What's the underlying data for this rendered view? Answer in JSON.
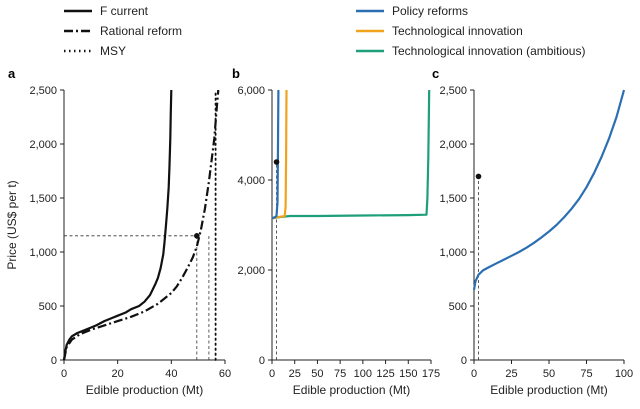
{
  "legend": [
    {
      "label": "F current",
      "style": "solid",
      "color": "#111111"
    },
    {
      "label": "Rational reform",
      "style": "dashdot",
      "color": "#111111"
    },
    {
      "label": "MSY",
      "style": "dotted",
      "color": "#111111"
    },
    {
      "label": "Policy reforms",
      "style": "solid",
      "color": "#2b6fb3"
    },
    {
      "label": "Technological innovation",
      "style": "solid",
      "color": "#f0a41e"
    },
    {
      "label": "Technological innovation (ambitious)",
      "style": "solid",
      "color": "#1f9e7a"
    }
  ],
  "chart_data": [
    {
      "panel": "a",
      "type": "line",
      "xlabel": "Edible production (Mt)",
      "ylabel": "Price (US$ per t)",
      "xlim": [
        0,
        60
      ],
      "ylim": [
        0,
        2500
      ],
      "xticks": [
        0,
        20,
        40,
        60
      ],
      "yticks": [
        0,
        500,
        1000,
        1500,
        2000,
        2500
      ],
      "ytick_labels": [
        "0",
        "500",
        "1,000",
        "1,500",
        "2,000",
        "2,500"
      ],
      "grid": false,
      "series": [
        {
          "name": "F current",
          "style": "solid",
          "color": "#111111",
          "x": [
            0,
            0.5,
            1,
            2,
            3,
            5,
            8,
            10,
            12,
            15,
            18,
            20,
            23,
            25,
            28,
            30,
            32,
            33,
            34,
            35,
            36,
            37,
            37.5,
            38,
            38.5,
            39,
            39.3,
            39.6,
            39.8,
            40
          ],
          "y": [
            0,
            80,
            140,
            190,
            220,
            250,
            280,
            300,
            320,
            360,
            390,
            410,
            440,
            470,
            500,
            540,
            600,
            650,
            700,
            760,
            850,
            980,
            1100,
            1250,
            1400,
            1600,
            1800,
            2050,
            2300,
            2500
          ]
        },
        {
          "name": "Rational reform",
          "style": "dashdot",
          "color": "#111111",
          "x": [
            0,
            1,
            3,
            6,
            10,
            15,
            20,
            25,
            30,
            35,
            40,
            42,
            44,
            46,
            48,
            49.5,
            51,
            52.5,
            54,
            55,
            56,
            56.5,
            57,
            57.5
          ],
          "y": [
            0,
            120,
            190,
            240,
            280,
            320,
            360,
            400,
            450,
            520,
            620,
            680,
            760,
            850,
            950,
            1050,
            1200,
            1400,
            1650,
            1850,
            2050,
            2200,
            2350,
            2500
          ]
        },
        {
          "name": "MSY",
          "style": "dotted",
          "color": "#111111",
          "x": [
            56.5,
            56.5
          ],
          "y": [
            0,
            2500
          ]
        }
      ],
      "markers": [
        {
          "x": 49.5,
          "y": 1150
        }
      ],
      "reference_lines": [
        {
          "orientation": "horizontal",
          "y": 1150,
          "x_from": 0,
          "x_to": 49.5
        },
        {
          "orientation": "vertical",
          "x": 49.5,
          "y_from": 0,
          "y_to": 1150
        },
        {
          "orientation": "vertical",
          "x": 54,
          "y_from": 0,
          "y_to": 1150
        }
      ]
    },
    {
      "panel": "b",
      "type": "line",
      "xlabel": "Edible production (Mt)",
      "ylabel": "",
      "xlim": [
        0,
        175
      ],
      "ylim": [
        0,
        6000
      ],
      "xticks": [
        0,
        25,
        50,
        75,
        100,
        125,
        150,
        175
      ],
      "yticks": [
        0,
        2000,
        4000,
        6000
      ],
      "ytick_labels": [
        "0",
        "2,000",
        "4,000",
        "6,000"
      ],
      "grid": false,
      "series": [
        {
          "name": "Technological innovation (ambitious)",
          "style": "solid",
          "color": "#1f9e7a",
          "x": [
            0,
            10,
            20,
            50,
            100,
            150,
            170,
            171,
            172,
            173
          ],
          "y": [
            3150,
            3180,
            3200,
            3200,
            3210,
            3220,
            3230,
            3600,
            4500,
            6000
          ]
        },
        {
          "name": "Technological innovation",
          "style": "solid",
          "color": "#f0a41e",
          "x": [
            0,
            8,
            14,
            15,
            15.5,
            16
          ],
          "y": [
            3150,
            3180,
            3200,
            3400,
            4500,
            6000
          ]
        },
        {
          "name": "Policy reforms",
          "style": "solid",
          "color": "#2b6fb3",
          "x": [
            0,
            3,
            5,
            6,
            6.5,
            7
          ],
          "y": [
            3150,
            3170,
            3200,
            3500,
            4500,
            6000
          ]
        }
      ],
      "markers": [
        {
          "x": 5,
          "y": 4400
        }
      ],
      "reference_lines": [
        {
          "orientation": "vertical",
          "x": 5,
          "y_from": 0,
          "y_to": 4400
        }
      ]
    },
    {
      "panel": "c",
      "type": "line",
      "xlabel": "Edible production (Mt)",
      "ylabel": "",
      "xlim": [
        0,
        100
      ],
      "ylim": [
        0,
        2500
      ],
      "xticks": [
        0,
        25,
        50,
        75,
        100
      ],
      "yticks": [
        0,
        500,
        1000,
        1500,
        2000,
        2500
      ],
      "ytick_labels": [
        "0",
        "500",
        "1,000",
        "1,500",
        "2,000",
        "2,500"
      ],
      "grid": false,
      "series": [
        {
          "name": "Policy reforms",
          "style": "solid",
          "color": "#2b6fb3",
          "x": [
            0,
            1,
            3,
            6,
            10,
            15,
            20,
            25,
            30,
            35,
            40,
            45,
            50,
            55,
            60,
            65,
            70,
            75,
            80,
            85,
            90,
            95,
            100
          ],
          "y": [
            650,
            730,
            790,
            830,
            860,
            895,
            930,
            965,
            1000,
            1040,
            1085,
            1135,
            1190,
            1250,
            1320,
            1400,
            1490,
            1600,
            1730,
            1880,
            2050,
            2250,
            2500
          ]
        }
      ],
      "markers": [
        {
          "x": 3,
          "y": 1700
        }
      ],
      "reference_lines": [
        {
          "orientation": "vertical",
          "x": 3,
          "y_from": 0,
          "y_to": 1700
        }
      ]
    }
  ]
}
